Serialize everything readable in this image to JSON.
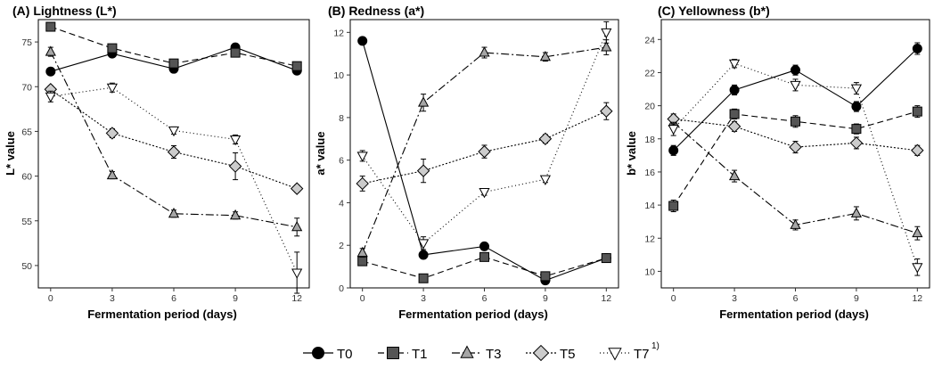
{
  "legend": {
    "items": [
      {
        "label": "T0",
        "marker": "circle",
        "fill": "#000000",
        "dash": ""
      },
      {
        "label": "T1",
        "marker": "square",
        "fill": "#555555",
        "dash": "7,4"
      },
      {
        "label": "T3",
        "marker": "triangle-up",
        "fill": "#a6a6a6",
        "dash": "9,3,2,3"
      },
      {
        "label": "T5",
        "marker": "diamond",
        "fill": "#cccccc",
        "dash": "2,2"
      },
      {
        "label": "T7",
        "marker": "triangle-down",
        "fill": "#ffffff",
        "dash": "1,3",
        "superscript": "1)"
      }
    ]
  },
  "chart_data": [
    {
      "type": "line",
      "title": "(A) Lightness (L*)",
      "xlabel": "Fermentation period (days)",
      "ylabel": "L* value",
      "x": [
        0,
        3,
        6,
        9,
        12
      ],
      "xticks": [
        0,
        3,
        6,
        9,
        12
      ],
      "ylim": [
        47.5,
        77.5
      ],
      "yticks": [
        50,
        55,
        60,
        65,
        70,
        75
      ],
      "series": [
        {
          "name": "T0",
          "values": [
            71.7,
            73.7,
            72.0,
            74.4,
            71.8
          ],
          "errors": [
            0.3,
            0.3,
            0.3,
            0.3,
            0.3
          ]
        },
        {
          "name": "T1",
          "values": [
            76.7,
            74.3,
            72.6,
            73.8,
            72.3
          ],
          "errors": [
            0.3,
            0.3,
            0.3,
            0.3,
            0.3
          ]
        },
        {
          "name": "T3",
          "values": [
            73.9,
            60.1,
            55.8,
            55.6,
            54.3
          ],
          "errors": [
            0.5,
            0.4,
            0.4,
            0.4,
            1.0
          ]
        },
        {
          "name": "T5",
          "values": [
            69.7,
            64.8,
            62.7,
            61.1,
            58.6
          ],
          "errors": [
            0.4,
            0.5,
            0.7,
            1.5,
            0.4
          ]
        },
        {
          "name": "T7",
          "values": [
            68.9,
            69.9,
            65.1,
            64.1,
            49.2
          ],
          "errors": [
            0.6,
            0.5,
            0.4,
            0.5,
            2.3
          ]
        }
      ]
    },
    {
      "type": "line",
      "title": "(B) Redness (a*)",
      "xlabel": "Fermentation period (days)",
      "ylabel": "a* value",
      "x": [
        0,
        3,
        6,
        9,
        12
      ],
      "xticks": [
        0,
        3,
        6,
        9,
        12
      ],
      "ylim": [
        0,
        12.6
      ],
      "yticks": [
        0,
        2,
        4,
        6,
        8,
        10,
        12
      ],
      "series": [
        {
          "name": "T0",
          "values": [
            11.6,
            1.55,
            1.95,
            0.35,
            1.4
          ],
          "errors": [
            0.15,
            0.15,
            0.15,
            0.15,
            0.15
          ]
        },
        {
          "name": "T1",
          "values": [
            1.25,
            0.45,
            1.45,
            0.55,
            1.4
          ],
          "errors": [
            0.15,
            0.15,
            0.15,
            0.15,
            0.2
          ]
        },
        {
          "name": "T3",
          "values": [
            1.65,
            8.7,
            11.05,
            10.85,
            11.3
          ],
          "errors": [
            0.2,
            0.4,
            0.25,
            0.2,
            0.35
          ]
        },
        {
          "name": "T5",
          "values": [
            4.9,
            5.5,
            6.4,
            7.0,
            8.3
          ],
          "errors": [
            0.35,
            0.55,
            0.3,
            0.2,
            0.4
          ]
        },
        {
          "name": "T7",
          "values": [
            6.2,
            2.1,
            4.5,
            5.1,
            12.0
          ],
          "errors": [
            0.25,
            0.3,
            0.15,
            0.15,
            0.5
          ]
        }
      ]
    },
    {
      "type": "line",
      "title": "(C) Yellowness (b*)",
      "xlabel": "Fermentation period (days)",
      "ylabel": "b* value",
      "x": [
        0,
        3,
        6,
        9,
        12
      ],
      "xticks": [
        0,
        3,
        6,
        9,
        12
      ],
      "ylim": [
        9.0,
        25.2
      ],
      "yticks": [
        10,
        12,
        14,
        16,
        18,
        20,
        22,
        24
      ],
      "series": [
        {
          "name": "T0",
          "values": [
            17.3,
            20.95,
            22.15,
            19.95,
            23.45
          ],
          "errors": [
            0.3,
            0.3,
            0.3,
            0.3,
            0.35
          ]
        },
        {
          "name": "T1",
          "values": [
            13.95,
            19.5,
            19.05,
            18.6,
            19.65
          ],
          "errors": [
            0.35,
            0.3,
            0.35,
            0.3,
            0.35
          ]
        },
        {
          "name": "T3",
          "values": [
            19.0,
            15.75,
            12.8,
            13.5,
            12.3
          ],
          "errors": [
            0.3,
            0.35,
            0.3,
            0.4,
            0.4
          ]
        },
        {
          "name": "T5",
          "values": [
            19.2,
            18.75,
            17.5,
            17.75,
            17.3
          ],
          "errors": [
            0.3,
            0.3,
            0.35,
            0.35,
            0.3
          ]
        },
        {
          "name": "T7",
          "values": [
            18.6,
            22.55,
            21.25,
            21.05,
            10.25
          ],
          "errors": [
            0.4,
            0.25,
            0.35,
            0.35,
            0.5
          ]
        }
      ]
    }
  ]
}
